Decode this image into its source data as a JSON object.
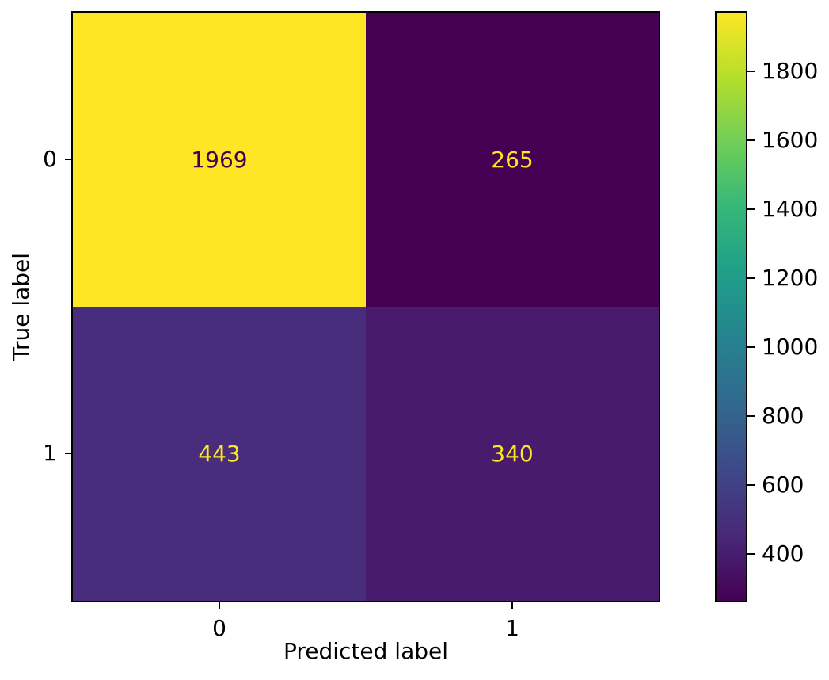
{
  "figure": {
    "background": "#ffffff",
    "axes_color": "#000000"
  },
  "chart_data": {
    "type": "heatmap",
    "title": "",
    "xlabel": "Predicted label",
    "ylabel": "True label",
    "x_tick_labels": [
      "0",
      "1"
    ],
    "y_tick_labels": [
      "0",
      "1"
    ],
    "matrix": [
      [
        1969,
        265
      ],
      [
        443,
        340
      ]
    ],
    "vmin": 265,
    "vmax": 1969,
    "colormap": "viridis",
    "grid": false,
    "legend_position": "right-colorbar",
    "colorbar_ticks": [
      400,
      600,
      800,
      1000,
      1200,
      1400,
      1600,
      1800
    ],
    "cell_colors": [
      [
        "#fde725",
        "#440154"
      ],
      [
        "#472d7b",
        "#481b6d"
      ]
    ],
    "cell_text_colors": [
      [
        "#440154",
        "#fde725"
      ],
      [
        "#fde725",
        "#fde725"
      ]
    ],
    "colorbar_gradient": [
      {
        "pos": 0.0,
        "color": "#440154"
      },
      {
        "pos": 0.111,
        "color": "#482878"
      },
      {
        "pos": 0.222,
        "color": "#3e4989"
      },
      {
        "pos": 0.333,
        "color": "#31688e"
      },
      {
        "pos": 0.444,
        "color": "#26828e"
      },
      {
        "pos": 0.556,
        "color": "#1f9e89"
      },
      {
        "pos": 0.667,
        "color": "#35b779"
      },
      {
        "pos": 0.778,
        "color": "#6ece58"
      },
      {
        "pos": 0.889,
        "color": "#b5de2b"
      },
      {
        "pos": 1.0,
        "color": "#fde725"
      }
    ]
  }
}
